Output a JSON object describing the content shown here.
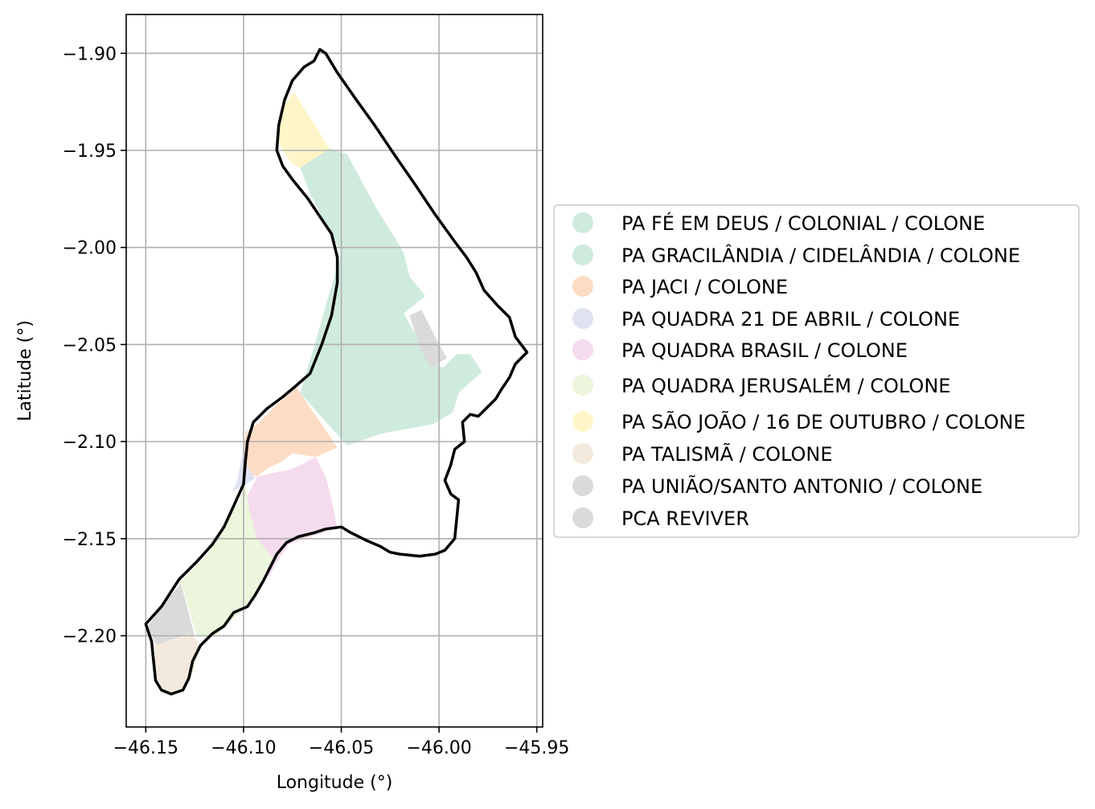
{
  "chart_data": {
    "type": "map",
    "xlabel": "Longitude (°)",
    "ylabel": "Latitude (°)",
    "xlim": [
      -46.16,
      -45.947
    ],
    "ylim": [
      -2.247,
      -1.88
    ],
    "xticks": [
      {
        "value": -46.15,
        "label": "−46.15"
      },
      {
        "value": -46.1,
        "label": "−46.10"
      },
      {
        "value": -46.05,
        "label": "−46.05"
      },
      {
        "value": -46.0,
        "label": "−46.00"
      },
      {
        "value": -45.95,
        "label": "−45.95"
      }
    ],
    "yticks": [
      {
        "value": -1.9,
        "label": "−1.90"
      },
      {
        "value": -1.95,
        "label": "−1.95"
      },
      {
        "value": -2.0,
        "label": "−2.00"
      },
      {
        "value": -2.05,
        "label": "−2.05"
      },
      {
        "value": -2.1,
        "label": "−2.10"
      },
      {
        "value": -2.15,
        "label": "−2.15"
      },
      {
        "value": -2.2,
        "label": "−2.20"
      }
    ],
    "grid": true,
    "legend_position": "right",
    "legend": [
      {
        "label": "PA FÉ EM DEUS / COLONIAL / COLONE",
        "color": "#cfebdd"
      },
      {
        "label": "PA GRACILÂNDIA / CIDELÂNDIA / COLONE",
        "color": "#cfebdd"
      },
      {
        "label": "PA JACI / COLONE",
        "color": "#fddcc5"
      },
      {
        "label": "PA QUADRA 21 DE ABRIL / COLONE",
        "color": "#dfe3f1"
      },
      {
        "label": "PA QUADRA BRASIL  / COLONE",
        "color": "#f5dbee"
      },
      {
        "label": "PA QUADRA JERUSALÉM / COLONE",
        "color": "#ebf6dc"
      },
      {
        "label": "PA SÃO JOÃO / 16 DE OUTUBRO / COLONE",
        "color": "#fff5c8"
      },
      {
        "label": "PA TALISMÃ / COLONE",
        "color": "#f3e9dc"
      },
      {
        "label": "PA UNIÃO/SANTO ANTONIO / COLONE",
        "color": "#dadada"
      },
      {
        "label": "PCA REVIVER",
        "color": "#dadada"
      }
    ],
    "regions": [
      {
        "name": "PA SÃO JOÃO / 16 DE OUTUBRO / COLONE",
        "color": "#fff5c8",
        "coords": [
          [
            -46.074,
            -1.92
          ],
          [
            -46.068,
            -1.93
          ],
          [
            -46.061,
            -1.941
          ],
          [
            -46.056,
            -1.949
          ],
          [
            -46.071,
            -1.959
          ],
          [
            -46.075,
            -1.957
          ],
          [
            -46.081,
            -1.948
          ],
          [
            -46.083,
            -1.937
          ],
          [
            -46.08,
            -1.928
          ]
        ]
      },
      {
        "name": "PA FÉ EM DEUS / COLONIAL / COLONE",
        "color": "#cfebdd",
        "coords": [
          [
            -46.056,
            -1.949
          ],
          [
            -46.047,
            -1.952
          ],
          [
            -46.04,
            -1.965
          ],
          [
            -46.032,
            -1.98
          ],
          [
            -46.025,
            -1.991
          ],
          [
            -46.018,
            -2.003
          ],
          [
            -46.015,
            -2.015
          ],
          [
            -46.007,
            -2.025
          ],
          [
            -46.018,
            -2.034
          ],
          [
            -46.005,
            -2.058
          ],
          [
            -45.998,
            -2.062
          ],
          [
            -45.991,
            -2.055
          ],
          [
            -45.984,
            -2.055
          ],
          [
            -45.978,
            -2.064
          ],
          [
            -45.99,
            -2.075
          ],
          [
            -45.993,
            -2.085
          ],
          [
            -46.003,
            -2.091
          ],
          [
            -46.03,
            -2.096
          ],
          [
            -46.047,
            -2.102
          ],
          [
            -46.071,
            -2.075
          ],
          [
            -46.065,
            -2.055
          ],
          [
            -46.058,
            -2.03
          ],
          [
            -46.05,
            -2.003
          ],
          [
            -46.057,
            -1.99
          ],
          [
            -46.066,
            -1.972
          ],
          [
            -46.071,
            -1.959
          ]
        ]
      },
      {
        "name": "PA UNIÃO/SANTO ANTONIO / COLONE",
        "color": "#dadada",
        "coords": [
          [
            -46.015,
            -2.035
          ],
          [
            -46.009,
            -2.032
          ],
          [
            -46.001,
            -2.048
          ],
          [
            -45.996,
            -2.057
          ],
          [
            -46.004,
            -2.062
          ],
          [
            -46.01,
            -2.052
          ]
        ]
      },
      {
        "name": "PA JACI / COLONE",
        "color": "#fddcc5",
        "coords": [
          [
            -46.073,
            -2.072
          ],
          [
            -46.084,
            -2.082
          ],
          [
            -46.093,
            -2.091
          ],
          [
            -46.099,
            -2.095
          ],
          [
            -46.1,
            -2.105
          ],
          [
            -46.098,
            -2.116
          ],
          [
            -46.093,
            -2.118
          ],
          [
            -46.088,
            -2.114
          ],
          [
            -46.08,
            -2.11
          ],
          [
            -46.075,
            -2.106
          ],
          [
            -46.063,
            -2.108
          ],
          [
            -46.052,
            -2.103
          ]
        ]
      },
      {
        "name": "PA QUADRA 21 DE ABRIL / COLONE",
        "color": "#dfe3f1",
        "coords": [
          [
            -46.101,
            -2.108
          ],
          [
            -46.103,
            -2.12
          ],
          [
            -46.106,
            -2.126
          ],
          [
            -46.099,
            -2.122
          ],
          [
            -46.094,
            -2.119
          ]
        ]
      },
      {
        "name": "PA QUADRA BRASIL  / COLONE",
        "color": "#f5dbee",
        "coords": [
          [
            -46.063,
            -2.108
          ],
          [
            -46.058,
            -2.118
          ],
          [
            -46.055,
            -2.13
          ],
          [
            -46.052,
            -2.145
          ],
          [
            -46.063,
            -2.148
          ],
          [
            -46.077,
            -2.153
          ],
          [
            -46.084,
            -2.164
          ],
          [
            -46.087,
            -2.17
          ],
          [
            -46.094,
            -2.152
          ],
          [
            -46.099,
            -2.13
          ],
          [
            -46.093,
            -2.118
          ],
          [
            -46.075,
            -2.114
          ]
        ]
      },
      {
        "name": "PA QUADRA JERUSALÉM / COLONE",
        "color": "#ebf6dc",
        "coords": [
          [
            -46.099,
            -2.122
          ],
          [
            -46.102,
            -2.13
          ],
          [
            -46.11,
            -2.144
          ],
          [
            -46.119,
            -2.159
          ],
          [
            -46.132,
            -2.172
          ],
          [
            -46.124,
            -2.2
          ],
          [
            -46.114,
            -2.2
          ],
          [
            -46.104,
            -2.19
          ],
          [
            -46.097,
            -2.185
          ],
          [
            -46.09,
            -2.17
          ],
          [
            -46.085,
            -2.16
          ],
          [
            -46.093,
            -2.15
          ],
          [
            -46.097,
            -2.135
          ]
        ]
      },
      {
        "name": "PCA REVIVER",
        "color": "#dadada",
        "coords": [
          [
            -46.149,
            -2.195
          ],
          [
            -46.141,
            -2.184
          ],
          [
            -46.132,
            -2.173
          ],
          [
            -46.125,
            -2.2
          ],
          [
            -46.133,
            -2.204
          ],
          [
            -46.142,
            -2.21
          ],
          [
            -46.147,
            -2.2
          ]
        ]
      },
      {
        "name": "PA TALISMÃ / COLONE",
        "color": "#f3e9dc",
        "coords": [
          [
            -46.145,
            -2.205
          ],
          [
            -46.137,
            -2.202
          ],
          [
            -46.128,
            -2.199
          ],
          [
            -46.123,
            -2.203
          ],
          [
            -46.124,
            -2.212
          ],
          [
            -46.127,
            -2.222
          ],
          [
            -46.13,
            -2.226
          ],
          [
            -46.133,
            -2.228
          ],
          [
            -46.14,
            -2.23
          ],
          [
            -46.146,
            -2.222
          ]
        ]
      }
    ],
    "outline": [
      [
        -46.15,
        -2.194
      ],
      [
        -46.142,
        -2.185
      ],
      [
        -46.133,
        -2.171
      ],
      [
        -46.124,
        -2.162
      ],
      [
        -46.116,
        -2.153
      ],
      [
        -46.11,
        -2.144
      ],
      [
        -46.105,
        -2.133
      ],
      [
        -46.1,
        -2.122
      ],
      [
        -46.099,
        -2.11
      ],
      [
        -46.098,
        -2.1
      ],
      [
        -46.095,
        -2.09
      ],
      [
        -46.088,
        -2.083
      ],
      [
        -46.08,
        -2.077
      ],
      [
        -46.074,
        -2.072
      ],
      [
        -46.066,
        -2.065
      ],
      [
        -46.06,
        -2.05
      ],
      [
        -46.055,
        -2.035
      ],
      [
        -46.052,
        -2.018
      ],
      [
        -46.052,
        -2.005
      ],
      [
        -46.055,
        -1.993
      ],
      [
        -46.061,
        -1.984
      ],
      [
        -46.067,
        -1.975
      ],
      [
        -46.075,
        -1.965
      ],
      [
        -46.08,
        -1.958
      ],
      [
        -46.083,
        -1.95
      ],
      [
        -46.082,
        -1.937
      ],
      [
        -46.079,
        -1.924
      ],
      [
        -46.075,
        -1.914
      ],
      [
        -46.069,
        -1.907
      ],
      [
        -46.064,
        -1.904
      ],
      [
        -46.061,
        -1.898
      ],
      [
        -46.058,
        -1.9
      ],
      [
        -46.052,
        -1.91
      ],
      [
        -46.043,
        -1.923
      ],
      [
        -46.033,
        -1.937
      ],
      [
        -46.023,
        -1.952
      ],
      [
        -46.012,
        -1.968
      ],
      [
        -46.002,
        -1.983
      ],
      [
        -45.992,
        -1.997
      ],
      [
        -45.986,
        -2.005
      ],
      [
        -45.981,
        -2.013
      ],
      [
        -45.977,
        -2.022
      ],
      [
        -45.97,
        -2.03
      ],
      [
        -45.964,
        -2.036
      ],
      [
        -45.961,
        -2.046
      ],
      [
        -45.955,
        -2.054
      ],
      [
        -45.961,
        -2.06
      ],
      [
        -45.964,
        -2.067
      ],
      [
        -45.968,
        -2.073
      ],
      [
        -45.971,
        -2.078
      ],
      [
        -45.976,
        -2.083
      ],
      [
        -45.98,
        -2.087
      ],
      [
        -45.984,
        -2.086
      ],
      [
        -45.988,
        -2.09
      ],
      [
        -45.987,
        -2.1
      ],
      [
        -45.992,
        -2.104
      ],
      [
        -45.994,
        -2.112
      ],
      [
        -45.997,
        -2.12
      ],
      [
        -45.994,
        -2.127
      ],
      [
        -45.99,
        -2.13
      ],
      [
        -45.991,
        -2.14
      ],
      [
        -45.992,
        -2.15
      ],
      [
        -45.997,
        -2.156
      ],
      [
        -46.002,
        -2.158
      ],
      [
        -46.01,
        -2.159
      ],
      [
        -46.02,
        -2.158
      ],
      [
        -46.025,
        -2.157
      ],
      [
        -46.03,
        -2.154
      ],
      [
        -46.037,
        -2.151
      ],
      [
        -46.045,
        -2.147
      ],
      [
        -46.05,
        -2.144
      ],
      [
        -46.058,
        -2.145
      ],
      [
        -46.064,
        -2.147
      ],
      [
        -46.072,
        -2.149
      ],
      [
        -46.078,
        -2.152
      ],
      [
        -46.083,
        -2.158
      ],
      [
        -46.086,
        -2.164
      ],
      [
        -46.09,
        -2.172
      ],
      [
        -46.094,
        -2.179
      ],
      [
        -46.098,
        -2.185
      ],
      [
        -46.105,
        -2.188
      ],
      [
        -46.11,
        -2.195
      ],
      [
        -46.116,
        -2.199
      ],
      [
        -46.122,
        -2.205
      ],
      [
        -46.126,
        -2.213
      ],
      [
        -46.128,
        -2.222
      ],
      [
        -46.131,
        -2.228
      ],
      [
        -46.137,
        -2.23
      ],
      [
        -46.142,
        -2.228
      ],
      [
        -46.145,
        -2.223
      ],
      [
        -46.146,
        -2.213
      ],
      [
        -46.147,
        -2.203
      ],
      [
        -46.15,
        -2.194
      ]
    ]
  }
}
